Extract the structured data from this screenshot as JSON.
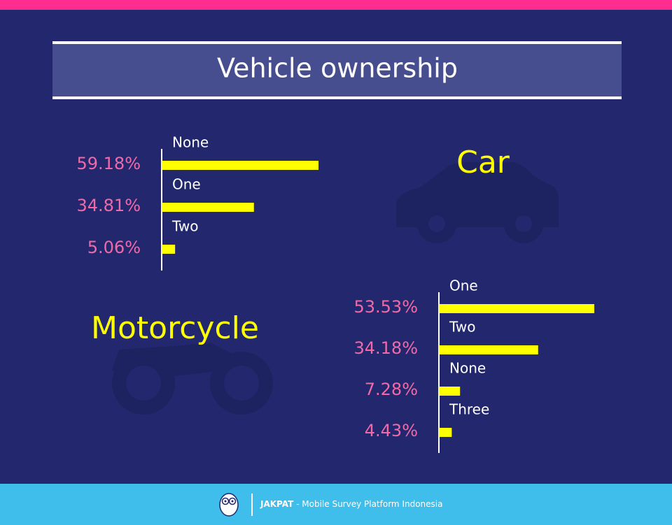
{
  "header": {
    "title": "Vehicle ownership"
  },
  "chart_data": [
    {
      "type": "bar",
      "title": "Car",
      "categories": [
        "None",
        "One",
        "Two"
      ],
      "values": [
        59.18,
        34.81,
        5.06
      ],
      "value_labels": [
        "59.18%",
        "34.81%",
        "5.06%"
      ],
      "color": "#ffff00"
    },
    {
      "type": "bar",
      "title": "Motorcycle",
      "categories": [
        "One",
        "Two",
        "None",
        "Three"
      ],
      "values": [
        53.53,
        34.18,
        7.28,
        4.43
      ],
      "value_labels": [
        "53.53%",
        "34.18%",
        "7.28%",
        "4.43%"
      ],
      "color": "#ffff00"
    }
  ],
  "footer": {
    "brand": "JAKPAT",
    "tagline": "- Mobile Survey Platform Indonesia"
  }
}
